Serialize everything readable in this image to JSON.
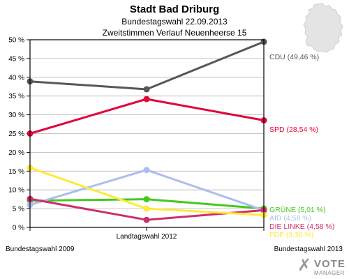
{
  "header": {
    "title": "Stadt Bad Driburg",
    "subtitle1": "Bundestagswahl 22.09.2013",
    "subtitle2": "Zweitstimmen Verlauf Neuenheerse 15"
  },
  "logo": {
    "mark": "✗",
    "line1": "VOTE",
    "line2": "MANAGER"
  },
  "colors": {
    "grid": "#b5b5b5",
    "frame": "#000000"
  },
  "chart_data": {
    "type": "line",
    "title": "Stadt Bad Driburg",
    "x": [
      "Bundestagswahl 2009",
      "Landtagswahl 2012",
      "Bundestagswahl 2013"
    ],
    "ylim": [
      0,
      50
    ],
    "yticks": [
      "0 %",
      "5 %",
      "10 %",
      "15 %",
      "20 %",
      "25 %",
      "30 %",
      "35 %",
      "40 %",
      "45 %",
      "50 %"
    ],
    "grid": true,
    "series": [
      {
        "name": "CDU",
        "color": "#575757",
        "values": [
          38.9,
          36.8,
          49.46
        ],
        "label": "CDU (49,46 %)"
      },
      {
        "name": "SPD",
        "color": "#e2063a",
        "values": [
          25.0,
          34.2,
          28.54
        ],
        "label": "SPD (28,54 %)"
      },
      {
        "name": "GRÜNE",
        "color": "#46c81e",
        "values": [
          7.1,
          7.5,
          5.01
        ],
        "label": "GRÜNE (5,01 %)"
      },
      {
        "name": "AfD",
        "color": "#abbfec",
        "values": [
          6.0,
          15.3,
          4.58
        ],
        "label": "AfD (4,58 %)"
      },
      {
        "name": "DIE LINKE",
        "color": "#cc2f6e",
        "values": [
          7.6,
          2.0,
          4.58
        ],
        "label": "DIE LINKE (4,58 %)"
      },
      {
        "name": "FDP",
        "color": "#ffea3b",
        "values": [
          15.9,
          5.0,
          3.3
        ],
        "label": "FDP (3,30 %)"
      }
    ]
  }
}
